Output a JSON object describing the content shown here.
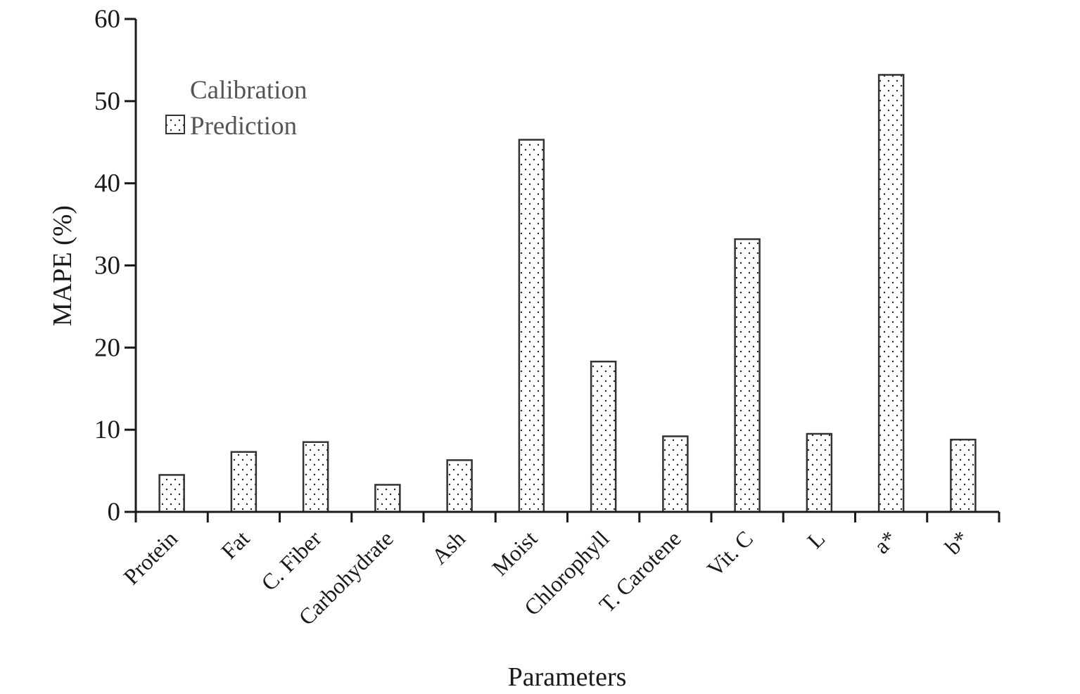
{
  "chart_data": {
    "type": "bar",
    "title": "",
    "xlabel": "Parameters",
    "ylabel": "MAPE (%)",
    "ylim": [
      0,
      60
    ],
    "yticks": [
      0,
      10,
      20,
      30,
      40,
      50,
      60
    ],
    "grid": false,
    "legend_position": "top-left",
    "categories": [
      "Protein",
      "Fat",
      "C. Fiber",
      "Carbohydrate",
      "Ash",
      "Moist",
      "Chlorophyll",
      "T. Carotene",
      "Vit. C",
      "L",
      "a*",
      "b*"
    ],
    "series": [
      {
        "name": "Calibration",
        "pattern": "none",
        "values": [
          0,
          0,
          0,
          0,
          0,
          0,
          0,
          0,
          0,
          0,
          0,
          0
        ]
      },
      {
        "name": "Prediction",
        "pattern": "dots",
        "values": [
          4.5,
          7.3,
          8.5,
          3.3,
          6.3,
          45.3,
          18.3,
          9.2,
          33.2,
          9.5,
          53.2,
          8.8
        ]
      }
    ],
    "colors": {
      "axis": "#1a1a1a",
      "bar_stroke": "#333333",
      "dot": "#222222",
      "legend_text": "#555555"
    }
  }
}
